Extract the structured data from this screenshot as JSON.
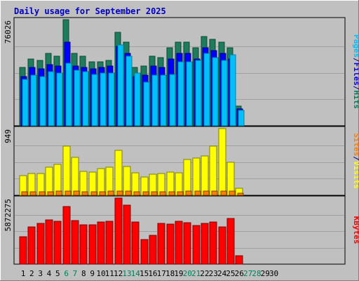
{
  "chart_data": {
    "type": "bar",
    "title": "Daily usage for September 2025",
    "categories": [
      "1",
      "2",
      "3",
      "4",
      "5",
      "6",
      "7",
      "8",
      "9",
      "10",
      "11",
      "12",
      "13",
      "14",
      "15",
      "16",
      "17",
      "18",
      "19",
      "20",
      "21",
      "22",
      "23",
      "24",
      "25",
      "26",
      "27",
      "28",
      "29",
      "30"
    ],
    "weekend_days": [
      "6",
      "7",
      "13",
      "14",
      "20",
      "21",
      "27",
      "28"
    ],
    "panels": [
      {
        "id": "hits",
        "ymax_label": "76026",
        "ylim": [
          0,
          76026
        ],
        "right_label": [
          "Pages",
          "/",
          "Files",
          "/",
          "Hits"
        ],
        "right_label_colors": [
          "#00c0ff",
          "#000080",
          "#0000ff",
          "#000080",
          "#00805c"
        ],
        "series": [
          {
            "name": "Hits",
            "color": "#1e7c5c",
            "values": [
              42000,
              48000,
              47000,
              52000,
              50000,
              76000,
              52000,
              50000,
              46000,
              46000,
              47000,
              67000,
              60000,
              42000,
              43000,
              50000,
              49000,
              56000,
              60000,
              60000,
              56000,
              64000,
              62000,
              60000,
              56000,
              14000
            ]
          },
          {
            "name": "Files",
            "color": "#0000ff",
            "values": [
              35000,
              42000,
              41000,
              44000,
              43000,
              60000,
              43000,
              42000,
              41000,
              42000,
              43000,
              57000,
              52000,
              35000,
              36000,
              43000,
              42000,
              48000,
              52000,
              52000,
              48000,
              56000,
              54000,
              52000,
              48000,
              12000
            ]
          },
          {
            "name": "Pages",
            "color": "#00c0ff",
            "values": [
              33000,
              36000,
              35000,
              39000,
              38000,
              45000,
              40000,
              39000,
              37000,
              38000,
              38000,
              58000,
              50000,
              38000,
              31000,
              36000,
              36000,
              37000,
              46000,
              46000,
              47000,
              52000,
              49000,
              47000,
              51000,
              11000
            ]
          }
        ]
      },
      {
        "id": "visits",
        "ymax_label": "949",
        "ylim": [
          0,
          949
        ],
        "right_label": [
          "Sites",
          "/",
          "Visits"
        ],
        "right_label_colors": [
          "#ff8000",
          "#000080",
          "#ffff00"
        ],
        "series": [
          {
            "name": "Visits",
            "color": "#ffff00",
            "values": [
              280,
              310,
              310,
              400,
              440,
              700,
              540,
              340,
              330,
              380,
              400,
              640,
              410,
              320,
              260,
              300,
              310,
              330,
              320,
              510,
              530,
              560,
              700,
              949,
              470,
              100
            ]
          },
          {
            "name": "Sites",
            "color": "#ff8000",
            "values": [
              50,
              50,
              50,
              50,
              55,
              55,
              55,
              50,
              50,
              50,
              55,
              55,
              55,
              50,
              50,
              50,
              50,
              50,
              50,
              55,
              55,
              55,
              60,
              60,
              55,
              25
            ]
          }
        ]
      },
      {
        "id": "kbytes",
        "ymax_label": "5872275",
        "ylim": [
          0,
          5872275
        ],
        "right_label": [
          "KBytes"
        ],
        "right_label_colors": [
          "#ff0000"
        ],
        "series": [
          {
            "name": "KBytes",
            "color": "#ff0000",
            "values": [
              2450000,
              3330000,
              3650000,
              3940000,
              3820000,
              5150000,
              3860000,
              3480000,
              3480000,
              3730000,
              3820000,
              6100000,
              5270000,
              3730000,
              2160000,
              2580000,
              3610000,
              3570000,
              3820000,
              3690000,
              3440000,
              3650000,
              3730000,
              3280000,
              4060000,
              780000
            ]
          }
        ]
      }
    ]
  }
}
